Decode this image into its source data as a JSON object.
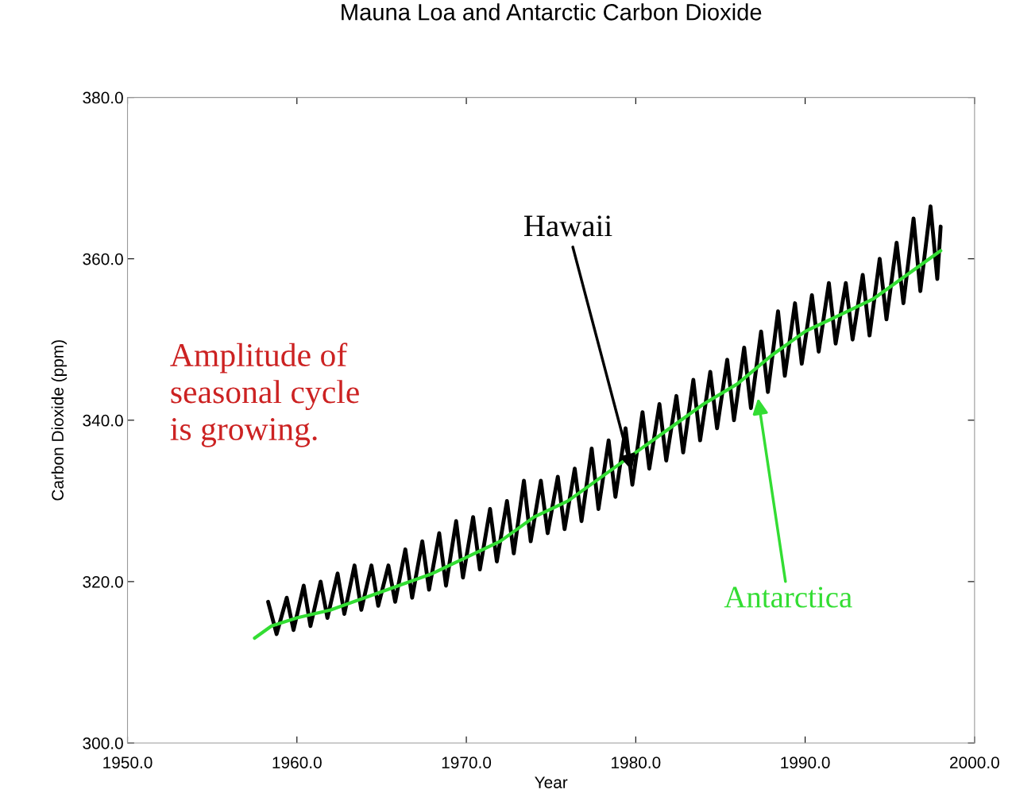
{
  "chart_data": {
    "type": "line",
    "title": "Mauna Loa and Antarctic Carbon Dioxide",
    "xlabel": "Year",
    "ylabel": "Carbon Dioxide (ppm)",
    "xlim": [
      1950,
      2000
    ],
    "ylim": [
      300,
      380
    ],
    "xticks": [
      {
        "value": 1950,
        "label": "1950.0"
      },
      {
        "value": 1960,
        "label": "1960.0"
      },
      {
        "value": 1970,
        "label": "1970.0"
      },
      {
        "value": 1980,
        "label": "1980.0"
      },
      {
        "value": 1990,
        "label": "1990.0"
      },
      {
        "value": 2000,
        "label": "2000.0"
      }
    ],
    "yticks": [
      {
        "value": 300,
        "label": "300.0"
      },
      {
        "value": 320,
        "label": "320.0"
      },
      {
        "value": 340,
        "label": "340.0"
      },
      {
        "value": 360,
        "label": "360.0"
      },
      {
        "value": 380,
        "label": "380.0"
      }
    ],
    "grid": false,
    "legend": false,
    "marker": "none",
    "line_style": "solid",
    "annotations": [
      "Amplitude of\nseasonal cycle\nis growing."
    ],
    "series": [
      {
        "name": "Hawaii",
        "color": "#000000",
        "x": [
          1958.3,
          1958.8,
          1959.4,
          1959.8,
          1960.4,
          1960.8,
          1961.4,
          1961.8,
          1962.4,
          1962.8,
          1963.4,
          1963.8,
          1964.4,
          1964.8,
          1965.4,
          1965.8,
          1966.4,
          1966.8,
          1967.4,
          1967.8,
          1968.4,
          1968.8,
          1969.4,
          1969.8,
          1970.4,
          1970.8,
          1971.4,
          1971.8,
          1972.4,
          1972.8,
          1973.4,
          1973.8,
          1974.4,
          1974.8,
          1975.4,
          1975.8,
          1976.4,
          1976.8,
          1977.4,
          1977.8,
          1978.4,
          1978.8,
          1979.4,
          1979.8,
          1980.4,
          1980.8,
          1981.4,
          1981.8,
          1982.4,
          1982.8,
          1983.4,
          1983.8,
          1984.4,
          1984.8,
          1985.4,
          1985.8,
          1986.4,
          1986.8,
          1987.4,
          1987.8,
          1988.4,
          1988.8,
          1989.4,
          1989.8,
          1990.4,
          1990.8,
          1991.4,
          1991.8,
          1992.4,
          1992.8,
          1993.4,
          1993.8,
          1994.4,
          1994.8,
          1995.4,
          1995.8,
          1996.4,
          1996.8,
          1997.4,
          1997.8,
          1998.0
        ],
        "values": [
          317.5,
          313.5,
          318,
          314,
          319.5,
          314.5,
          320,
          315.5,
          321,
          316,
          322,
          316.5,
          322,
          317,
          322,
          317.5,
          324,
          318,
          325,
          319,
          326,
          319.5,
          327.5,
          320.5,
          328,
          321.5,
          329,
          322.5,
          330,
          323.5,
          332.5,
          325,
          332.5,
          326,
          333,
          326.5,
          334,
          327.5,
          336.5,
          329,
          337.5,
          330.5,
          339,
          332,
          341,
          334,
          342,
          335,
          343,
          336,
          345,
          337.5,
          346,
          339,
          347.5,
          340,
          349,
          341.5,
          351,
          343.5,
          353.5,
          345.5,
          354.5,
          347,
          355.5,
          348.5,
          357,
          349.5,
          357,
          350,
          358,
          350.5,
          360,
          352.5,
          362,
          354.5,
          365,
          356,
          366.5,
          357.5,
          364
        ]
      },
      {
        "name": "Antarctica",
        "color": "#33dd33",
        "x": [
          1957.5,
          1958.5,
          1960,
          1962,
          1964,
          1966,
          1968,
          1970,
          1972,
          1974,
          1976,
          1978,
          1980,
          1982,
          1984,
          1986,
          1988,
          1990,
          1992,
          1994,
          1996,
          1998
        ],
        "values": [
          313,
          314.5,
          315.5,
          316.5,
          318,
          319.5,
          321,
          323,
          325,
          328,
          330,
          333,
          336,
          339,
          342,
          344.5,
          348,
          351,
          353,
          355,
          358,
          361
        ]
      }
    ]
  }
}
